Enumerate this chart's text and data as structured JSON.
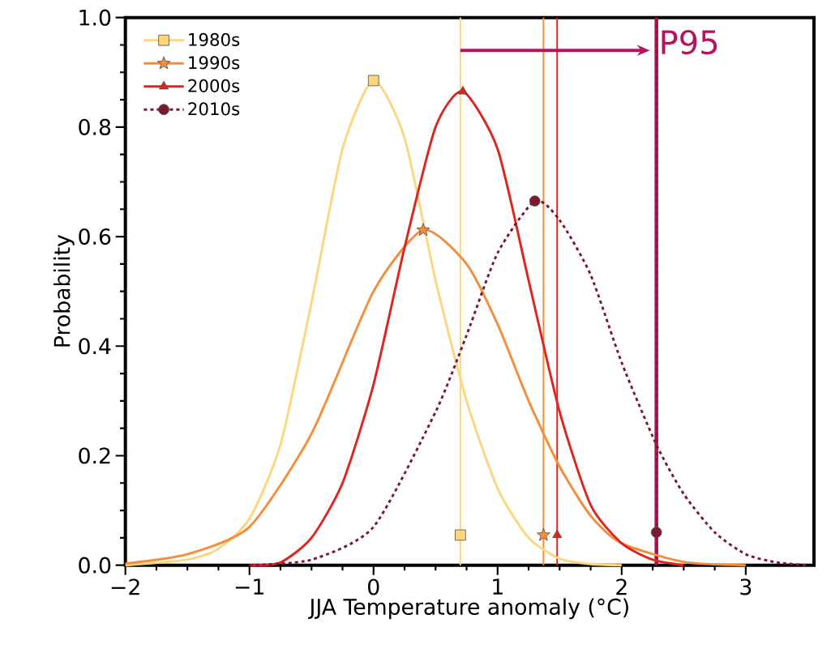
{
  "chart_data": {
    "type": "line",
    "xlabel": "JJA Temperature anomaly (°C)",
    "ylabel": "Probability",
    "xlim": [
      -2,
      3.55
    ],
    "ylim": [
      0,
      1
    ],
    "xticks": [
      {
        "value": -2,
        "label": "−2"
      },
      {
        "value": -1,
        "label": "−1"
      },
      0,
      1,
      2,
      3
    ],
    "yticks": [
      {
        "value": 0,
        "label": "0.0"
      },
      {
        "value": 0.2,
        "label": "0.2"
      },
      {
        "value": 0.4,
        "label": "0.4"
      },
      {
        "value": 0.6,
        "label": "0.6"
      },
      {
        "value": 0.8,
        "label": "0.8"
      },
      {
        "value": 1,
        "label": "1.0"
      }
    ],
    "grid": false,
    "legend": "top left",
    "series": [
      {
        "color": "#fdd67e",
        "line_style": "solid",
        "x": [
          -2,
          -1.5,
          -1.25,
          -1,
          -0.75,
          -0.5,
          -0.25,
          0,
          0.25,
          0.5,
          0.75,
          1,
          1.25,
          1.5,
          1.75,
          2
        ],
        "values": [
          0,
          0.01,
          0.03,
          0.085,
          0.22,
          0.48,
          0.76,
          0.885,
          0.78,
          0.52,
          0.3,
          0.14,
          0.05,
          0.012,
          0.002,
          0
        ]
      },
      {
        "color": "#f58d3b",
        "line_style": "solid",
        "x": [
          -2,
          -1.5,
          -1,
          -0.5,
          0,
          0.4,
          0.75,
          1,
          1.25,
          1.5,
          1.75,
          2,
          2.5,
          3
        ],
        "values": [
          0.003,
          0.02,
          0.07,
          0.24,
          0.5,
          0.612,
          0.55,
          0.44,
          0.3,
          0.18,
          0.09,
          0.04,
          0.006,
          0
        ]
      },
      {
        "color": "#e0231d",
        "line_style": "solid",
        "x": [
          -1,
          -0.75,
          -0.5,
          -0.25,
          0,
          0.25,
          0.5,
          0.72,
          1,
          1.25,
          1.5,
          1.75,
          2,
          2.25,
          2.5
        ],
        "values": [
          0,
          0.005,
          0.05,
          0.15,
          0.33,
          0.58,
          0.8,
          0.865,
          0.76,
          0.52,
          0.28,
          0.11,
          0.04,
          0.01,
          0
        ]
      },
      {
        "color": "#7b1a2f",
        "line_style": "dashed",
        "x": [
          -1,
          -0.5,
          0,
          0.5,
          0.75,
          1,
          1.3,
          1.5,
          1.75,
          2,
          2.28,
          2.5,
          2.75,
          3,
          3.25,
          3.5
        ],
        "values": [
          0,
          0.01,
          0.07,
          0.28,
          0.42,
          0.57,
          0.665,
          0.63,
          0.53,
          0.37,
          0.22,
          0.13,
          0.06,
          0.02,
          0.005,
          0
        ]
      },
      {
        "name": "1980s",
        "type": "scatter",
        "color": "#fdd67e",
        "marker": "square",
        "x": [
          0,
          0.7
        ],
        "values": [
          0.885,
          0.055
        ]
      },
      {
        "name": "1990s",
        "type": "scatter",
        "color": "#f58d3b",
        "marker": "star",
        "x": [
          0.4,
          1.37
        ],
        "values": [
          0.612,
          0.055
        ]
      },
      {
        "name": "2000s",
        "type": "scatter",
        "color": "#e0231d",
        "marker": "triangle",
        "x": [
          0.72,
          1.48
        ],
        "values": [
          0.865,
          0.055
        ]
      },
      {
        "name": "2010s",
        "type": "scatter",
        "color": "#7b1a2f",
        "marker": "circle",
        "x": [
          1.3,
          2.28
        ],
        "values": [
          0.665,
          0.06
        ]
      }
    ],
    "ref_lines": [
      {
        "axis": "x",
        "value": 0.7,
        "color": "#fdd67e",
        "line_style": "solid"
      },
      {
        "axis": "x",
        "value": 1.37,
        "color": "#f58d3b",
        "line_style": "solid"
      },
      {
        "axis": "x",
        "value": 1.48,
        "color": "#e0231d",
        "line_style": "solid"
      },
      {
        "axis": "x",
        "value": 2.28,
        "color": "#b5135f",
        "line_style": "solid",
        "label": "P95"
      },
      {
        "axis": "x",
        "value": 2.28,
        "color": "#7b1a2f",
        "line_style": "dashed"
      }
    ]
  }
}
